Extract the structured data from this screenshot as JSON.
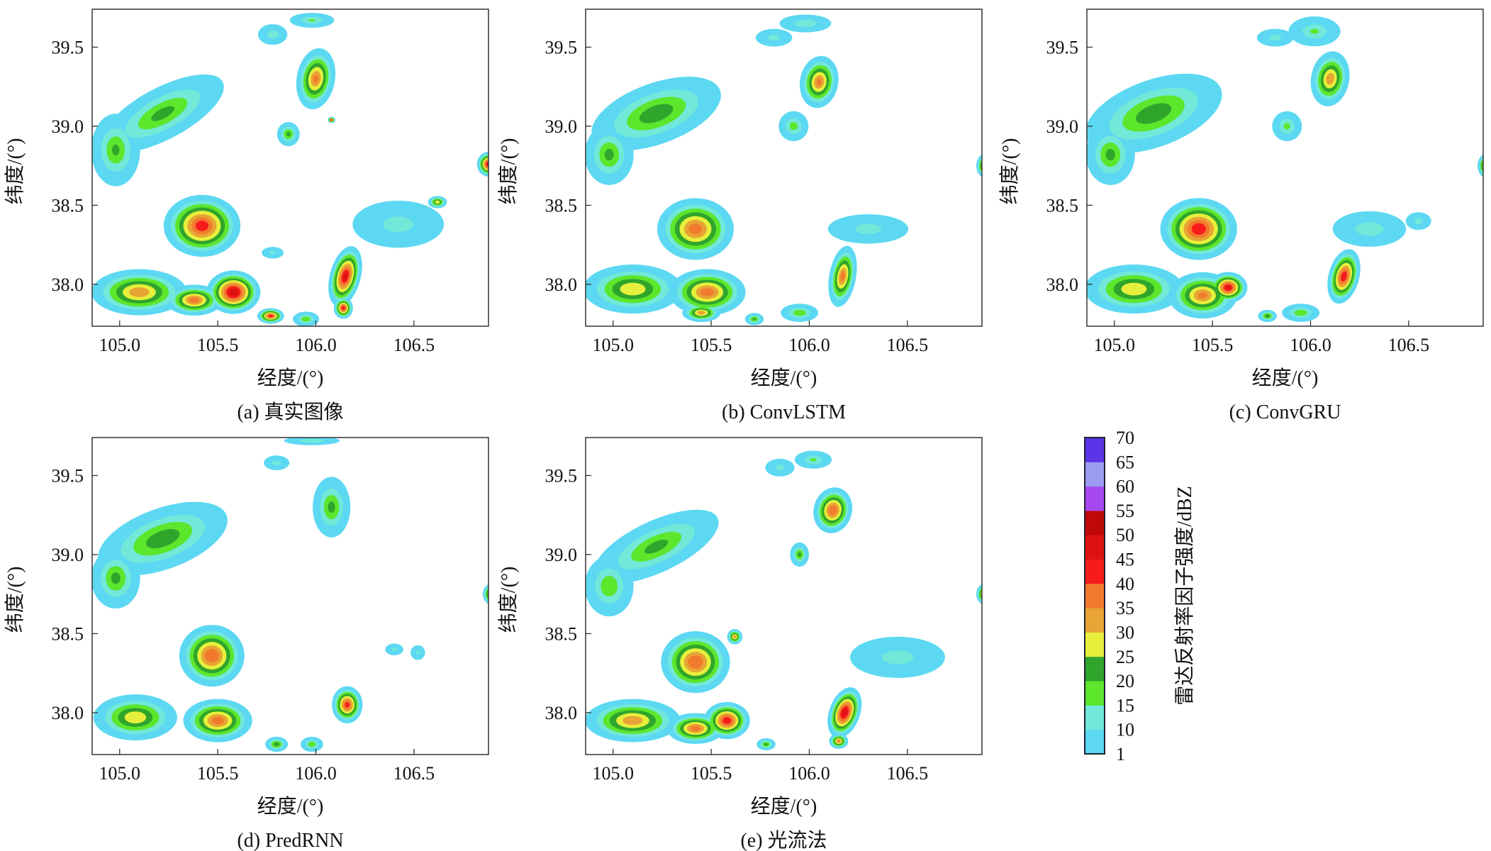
{
  "chart_data": {
    "type": "heatmap",
    "xlabel": "经度/(°)",
    "ylabel": "纬度/(°)",
    "xlim": [
      104.86,
      106.88
    ],
    "ylim": [
      37.735,
      39.74
    ],
    "xticks": [
      "105.0",
      "105.5",
      "106.0",
      "106.5"
    ],
    "yticks": [
      "38.0",
      "38.5",
      "39.0",
      "39.5"
    ],
    "colorbar": {
      "label": "雷达反射率因子强度/dBZ",
      "ticks": [
        "1",
        "10",
        "15",
        "20",
        "25",
        "30",
        "35",
        "40",
        "45",
        "50",
        "55",
        "60",
        "65",
        "70"
      ],
      "colors": [
        "#5cd8f2",
        "#72e8d8",
        "#5ce62c",
        "#2fa52c",
        "#e6f03c",
        "#e8a434",
        "#f27a2e",
        "#f61c1c",
        "#de1212",
        "#bf0808",
        "#a648f0",
        "#9c9cf0",
        "#5a34e6"
      ]
    },
    "panels": [
      {
        "caption": "(a) 真实图像",
        "cells": [
          [
            105.22,
            39.08,
            0.36,
            0.17,
            -28,
            22
          ],
          [
            104.98,
            38.85,
            0.13,
            0.24,
            0,
            21
          ],
          [
            105.78,
            39.58,
            0.08,
            0.07,
            0,
            14
          ],
          [
            105.98,
            39.67,
            0.12,
            0.05,
            0,
            16
          ],
          [
            106.0,
            39.3,
            0.1,
            0.2,
            10,
            36
          ],
          [
            106.08,
            39.04,
            0.02,
            0.02,
            0,
            46
          ],
          [
            105.86,
            38.95,
            0.06,
            0.08,
            0,
            22
          ],
          [
            106.88,
            38.76,
            0.06,
            0.08,
            0,
            46
          ],
          [
            105.42,
            38.37,
            0.2,
            0.2,
            0,
            43
          ],
          [
            105.1,
            37.95,
            0.25,
            0.15,
            0,
            34
          ],
          [
            105.38,
            37.9,
            0.15,
            0.1,
            0,
            38
          ],
          [
            105.58,
            37.95,
            0.14,
            0.14,
            0,
            49
          ],
          [
            105.77,
            37.8,
            0.07,
            0.05,
            0,
            43
          ],
          [
            106.15,
            38.05,
            0.08,
            0.2,
            15,
            46
          ],
          [
            106.14,
            37.85,
            0.05,
            0.07,
            0,
            44
          ],
          [
            106.42,
            38.38,
            0.25,
            0.16,
            0,
            13
          ],
          [
            106.62,
            38.52,
            0.05,
            0.04,
            0,
            30
          ],
          [
            105.95,
            37.78,
            0.07,
            0.05,
            0,
            20
          ],
          [
            105.78,
            38.2,
            0.06,
            0.04,
            0,
            12
          ]
        ]
      },
      {
        "caption": "(b) ConvLSTM",
        "cells": [
          [
            105.22,
            39.08,
            0.36,
            0.2,
            -20,
            24
          ],
          [
            104.98,
            38.82,
            0.13,
            0.2,
            0,
            22
          ],
          [
            105.82,
            39.56,
            0.1,
            0.06,
            0,
            13
          ],
          [
            105.98,
            39.65,
            0.14,
            0.06,
            0,
            15
          ],
          [
            106.05,
            39.28,
            0.1,
            0.17,
            10,
            36
          ],
          [
            105.92,
            39.0,
            0.08,
            0.1,
            0,
            18
          ],
          [
            106.9,
            38.75,
            0.05,
            0.08,
            0,
            42
          ],
          [
            106.3,
            38.35,
            0.22,
            0.1,
            0,
            13
          ],
          [
            105.42,
            38.35,
            0.2,
            0.2,
            0,
            38
          ],
          [
            105.1,
            37.97,
            0.26,
            0.16,
            0,
            30
          ],
          [
            105.48,
            37.95,
            0.2,
            0.15,
            0,
            38
          ],
          [
            105.72,
            37.78,
            0.05,
            0.04,
            0,
            22
          ],
          [
            106.17,
            38.05,
            0.07,
            0.2,
            10,
            37
          ],
          [
            105.95,
            37.82,
            0.1,
            0.06,
            0,
            20
          ],
          [
            105.45,
            37.82,
            0.1,
            0.06,
            0,
            34
          ]
        ]
      },
      {
        "caption": "(c) ConvGRU",
        "cells": [
          [
            105.2,
            39.08,
            0.38,
            0.22,
            -20,
            24
          ],
          [
            104.98,
            38.82,
            0.13,
            0.2,
            0,
            22
          ],
          [
            105.82,
            39.56,
            0.1,
            0.06,
            0,
            13
          ],
          [
            106.02,
            39.6,
            0.14,
            0.1,
            0,
            16
          ],
          [
            106.1,
            39.3,
            0.1,
            0.18,
            10,
            34
          ],
          [
            105.88,
            39.0,
            0.08,
            0.1,
            0,
            17
          ],
          [
            106.9,
            38.75,
            0.05,
            0.08,
            0,
            44
          ],
          [
            106.3,
            38.35,
            0.2,
            0.12,
            0,
            14
          ],
          [
            105.43,
            38.35,
            0.2,
            0.2,
            0,
            44
          ],
          [
            105.1,
            37.97,
            0.26,
            0.16,
            0,
            30
          ],
          [
            105.45,
            37.93,
            0.18,
            0.15,
            0,
            36
          ],
          [
            105.58,
            37.98,
            0.1,
            0.1,
            0,
            46
          ],
          [
            105.78,
            37.8,
            0.05,
            0.04,
            0,
            24
          ],
          [
            106.17,
            38.05,
            0.08,
            0.18,
            15,
            44
          ],
          [
            105.95,
            37.82,
            0.1,
            0.06,
            0,
            20
          ],
          [
            106.55,
            38.4,
            0.07,
            0.06,
            0,
            13
          ]
        ]
      },
      {
        "caption": "(d) PredRNN",
        "cells": [
          [
            105.22,
            39.1,
            0.36,
            0.2,
            -20,
            24
          ],
          [
            104.98,
            38.85,
            0.13,
            0.2,
            0,
            22
          ],
          [
            105.8,
            39.58,
            0.07,
            0.05,
            0,
            13
          ],
          [
            105.98,
            39.72,
            0.15,
            0.03,
            0,
            15
          ],
          [
            106.08,
            39.3,
            0.1,
            0.2,
            0,
            22
          ],
          [
            106.9,
            38.75,
            0.05,
            0.07,
            0,
            44
          ],
          [
            106.4,
            38.4,
            0.05,
            0.04,
            0,
            12
          ],
          [
            106.52,
            38.38,
            0.04,
            0.05,
            0,
            12
          ],
          [
            105.47,
            38.36,
            0.17,
            0.2,
            0,
            40
          ],
          [
            105.08,
            37.97,
            0.22,
            0.15,
            0,
            30
          ],
          [
            105.5,
            37.95,
            0.18,
            0.14,
            0,
            38
          ],
          [
            105.8,
            37.8,
            0.06,
            0.05,
            0,
            24
          ],
          [
            105.98,
            37.8,
            0.06,
            0.05,
            0,
            20
          ],
          [
            106.16,
            38.05,
            0.08,
            0.12,
            0,
            42
          ]
        ]
      },
      {
        "caption": "(e) 光流法",
        "cells": [
          [
            105.22,
            39.05,
            0.36,
            0.17,
            -25,
            22
          ],
          [
            104.98,
            38.8,
            0.13,
            0.2,
            0,
            20
          ],
          [
            105.85,
            39.55,
            0.08,
            0.06,
            0,
            13
          ],
          [
            106.02,
            39.6,
            0.1,
            0.06,
            0,
            16
          ],
          [
            106.12,
            39.28,
            0.1,
            0.15,
            15,
            40
          ],
          [
            105.95,
            39.0,
            0.05,
            0.08,
            0,
            22
          ],
          [
            106.9,
            38.75,
            0.05,
            0.07,
            0,
            46
          ],
          [
            106.45,
            38.35,
            0.26,
            0.14,
            0,
            13
          ],
          [
            105.42,
            38.32,
            0.18,
            0.2,
            0,
            40
          ],
          [
            105.1,
            37.95,
            0.25,
            0.14,
            0,
            34
          ],
          [
            105.42,
            37.9,
            0.15,
            0.1,
            0,
            38
          ],
          [
            105.58,
            37.95,
            0.12,
            0.12,
            0,
            44
          ],
          [
            105.78,
            37.8,
            0.05,
            0.04,
            0,
            22
          ],
          [
            106.18,
            38.0,
            0.08,
            0.17,
            20,
            48
          ],
          [
            106.15,
            37.82,
            0.05,
            0.05,
            0,
            36
          ],
          [
            105.62,
            38.48,
            0.04,
            0.05,
            0,
            34
          ]
        ]
      }
    ]
  }
}
